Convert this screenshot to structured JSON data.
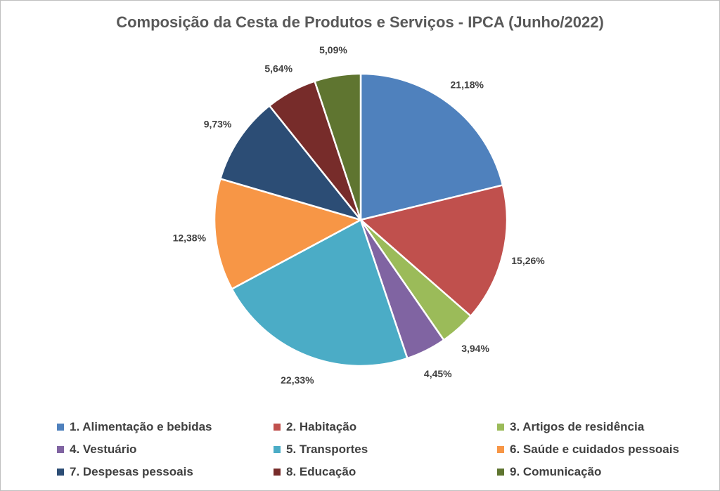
{
  "chart_data": {
    "type": "pie",
    "title": "Composição da Cesta de Produtos e Serviços - IPCA (Junho/2022)",
    "categories": [
      "1. Alimentação e bebidas",
      "2. Habitação",
      "3. Artigos de residência",
      "4. Vestuário",
      "5. Transportes",
      "6. Saúde e cuidados pessoais",
      "7. Despesas pessoais",
      "8. Educação",
      "9. Comunicação"
    ],
    "values": [
      21.18,
      15.26,
      3.94,
      4.45,
      22.33,
      12.38,
      9.73,
      5.64,
      5.09
    ],
    "labels": [
      "21,18%",
      "15,26%",
      "3,94%",
      "4,45%",
      "22,33%",
      "12,38%",
      "9,73%",
      "5,64%",
      "5,09%"
    ],
    "colors": [
      "#4F81BD",
      "#C0504D",
      "#9BBB59",
      "#8064A2",
      "#4BACC6",
      "#F79646",
      "#2C4D75",
      "#772C2A",
      "#5F7530"
    ],
    "start": "top, clockwise",
    "legend_position": "bottom"
  }
}
